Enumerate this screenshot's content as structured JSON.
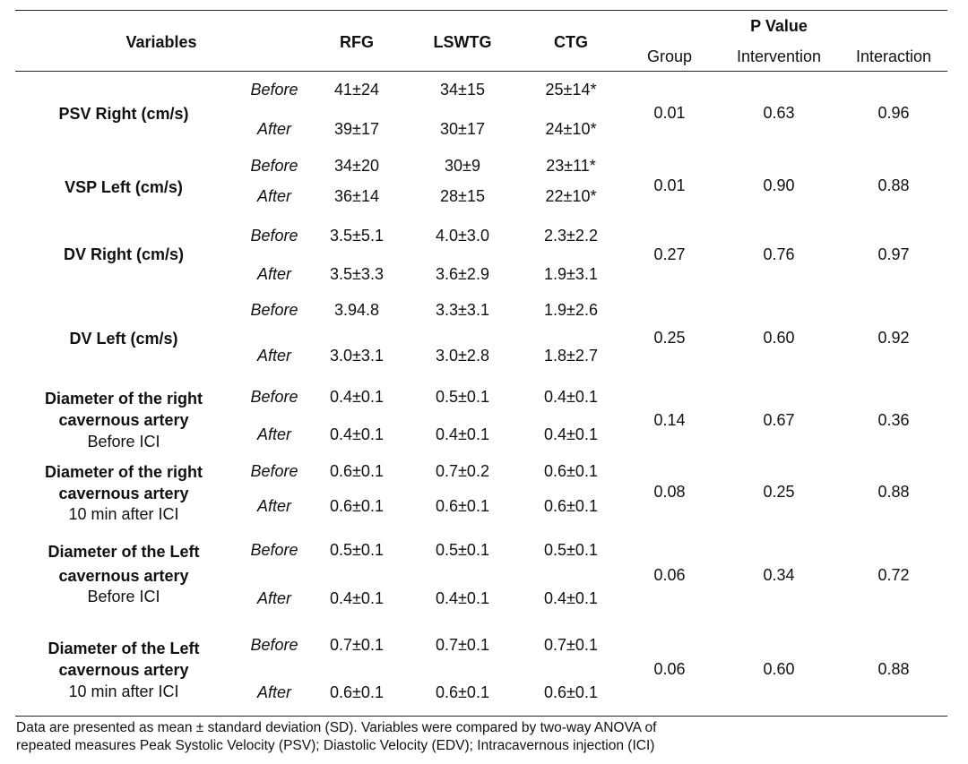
{
  "header": {
    "variables": "Variables",
    "groups": [
      "RFG",
      "LSWTG",
      "CTG"
    ],
    "p_value": "P Value",
    "p_sub": [
      "Group",
      "Intervention",
      "Interaction"
    ]
  },
  "rows": [
    {
      "label": [
        "PSV Right (cm/s)"
      ],
      "before": [
        "41±24",
        "34±15",
        "25±14*"
      ],
      "after": [
        "39±17",
        "30±17",
        "24±10*"
      ],
      "p": [
        "0.01",
        "0.63",
        "0.96"
      ]
    },
    {
      "label": [
        "VSP Left (cm/s)"
      ],
      "before": [
        "34±20",
        "30±9",
        "23±11*"
      ],
      "after": [
        "36±14",
        "28±15",
        "22±10*"
      ],
      "p": [
        "0.01",
        "0.90",
        "0.88"
      ]
    },
    {
      "label": [
        "DV Right (cm/s)"
      ],
      "before": [
        "3.5±5.1",
        "4.0±3.0",
        "2.3±2.2"
      ],
      "after": [
        "3.5±3.3",
        "3.6±2.9",
        "1.9±3.1"
      ],
      "p": [
        "0.27",
        "0.76",
        "0.97"
      ]
    },
    {
      "label": [
        "DV Left (cm/s)"
      ],
      "before": [
        "3.94.8",
        "3.3±3.1",
        "1.9±2.6"
      ],
      "after": [
        "3.0±3.1",
        "3.0±2.8",
        "1.8±2.7"
      ],
      "p": [
        "0.25",
        "0.60",
        "0.92"
      ]
    },
    {
      "label": [
        "Diameter of the right",
        "cavernous artery",
        "Before ICI"
      ],
      "before": [
        "0.4±0.1",
        "0.5±0.1",
        "0.4±0.1"
      ],
      "after": [
        "0.4±0.1",
        "0.4±0.1",
        "0.4±0.1"
      ],
      "p": [
        "0.14",
        "0.67",
        "0.36"
      ]
    },
    {
      "label": [
        "Diameter of the right",
        "cavernous artery",
        "10 min after ICI"
      ],
      "before": [
        "0.6±0.1",
        "0.7±0.2",
        "0.6±0.1"
      ],
      "after": [
        "0.6±0.1",
        "0.6±0.1",
        "0.6±0.1"
      ],
      "p": [
        "0.08",
        "0.25",
        "0.88"
      ]
    },
    {
      "label": [
        "Diameter of the Left",
        "cavernous artery",
        "Before ICI"
      ],
      "before": [
        "0.5±0.1",
        "0.5±0.1",
        "0.5±0.1"
      ],
      "after": [
        "0.4±0.1",
        "0.4±0.1",
        "0.4±0.1"
      ],
      "p": [
        "0.06",
        "0.34",
        "0.72"
      ]
    },
    {
      "label": [
        "Diameter of the Left",
        "cavernous artery",
        "10 min after ICI"
      ],
      "before": [
        "0.7±0.1",
        "0.7±0.1",
        "0.7±0.1"
      ],
      "after": [
        "0.6±0.1",
        "0.6±0.1",
        "0.6±0.1"
      ],
      "p": [
        "0.06",
        "0.60",
        "0.88"
      ]
    }
  ],
  "labels": {
    "before": "Before",
    "after": "After"
  },
  "footnote": [
    "Data are presented as mean ± standard deviation (SD). Variables were compared by two-way ANOVA of",
    "repeated measures Peak Systolic Velocity (PSV); Diastolic Velocity (EDV); Intracavernous injection (ICI)"
  ]
}
